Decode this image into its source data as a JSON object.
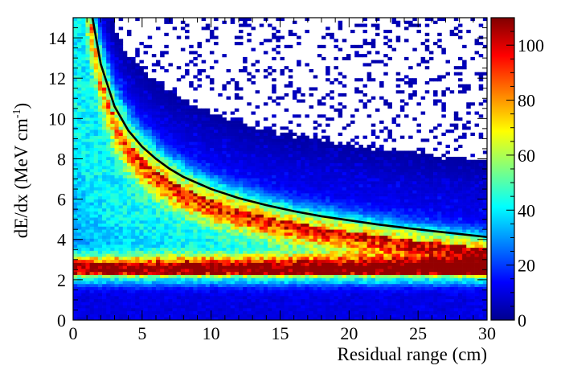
{
  "chart_data": {
    "type": "heatmap",
    "xlabel": "Residual range (cm)",
    "ylabel_main": "dE/dx (MeV cm",
    "ylabel_exp": "-1",
    "ylabel_close": ")",
    "xlim": [
      0,
      30
    ],
    "ylim": [
      0,
      15
    ],
    "x_ticks": [
      0,
      5,
      10,
      15,
      20,
      25,
      30
    ],
    "y_ticks": [
      0,
      2,
      4,
      6,
      8,
      10,
      12,
      14
    ],
    "z_range": [
      0,
      110
    ],
    "z_ticks": [
      0,
      20,
      40,
      60,
      80,
      100
    ],
    "x_bins": 100,
    "y_bins": 100,
    "colormap": "jet",
    "fit_curve": {
      "color": "#000000",
      "points": [
        [
          1.4,
          15.0
        ],
        [
          2,
          12.7
        ],
        [
          3,
          10.6
        ],
        [
          4,
          9.4
        ],
        [
          5,
          8.6
        ],
        [
          6,
          8.0
        ],
        [
          7,
          7.5
        ],
        [
          8,
          7.1
        ],
        [
          9,
          6.8
        ],
        [
          10,
          6.5
        ],
        [
          12,
          6.05
        ],
        [
          14,
          5.7
        ],
        [
          16,
          5.4
        ],
        [
          18,
          5.15
        ],
        [
          20,
          4.95
        ],
        [
          22,
          4.75
        ],
        [
          24,
          4.58
        ],
        [
          26,
          4.42
        ],
        [
          28,
          4.27
        ],
        [
          30,
          4.12
        ]
      ]
    }
  }
}
